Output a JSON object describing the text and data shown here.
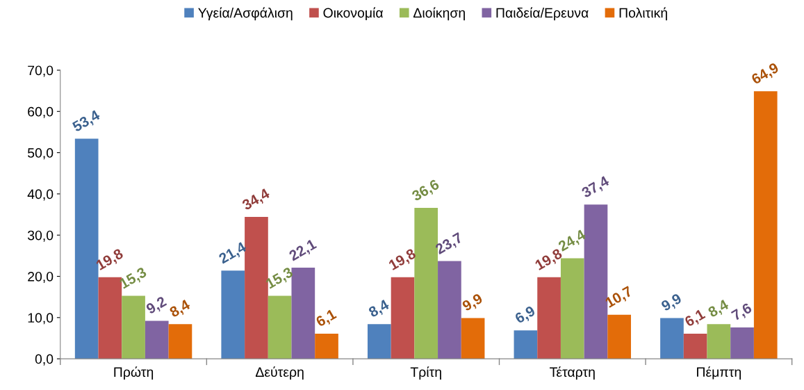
{
  "chart_data": {
    "type": "bar",
    "categories": [
      "Πρώτη",
      "Δεύτερη",
      "Τρίτη",
      "Τέταρτη",
      "Πέμπτη"
    ],
    "series": [
      {
        "name": "Υγεία/Ασφάλιση",
        "color": "#4f81bd",
        "values": [
          53.4,
          21.4,
          8.4,
          6.9,
          9.9
        ],
        "value_labels": [
          "53,4",
          "21,4",
          "8,4",
          "6,9",
          "9,9"
        ]
      },
      {
        "name": "Οικονομία",
        "color": "#c0504d",
        "values": [
          19.8,
          34.4,
          19.8,
          19.8,
          6.1
        ],
        "value_labels": [
          "19,8",
          "34,4",
          "19,8",
          "19,8",
          "6,1"
        ]
      },
      {
        "name": "Διοίκηση",
        "color": "#9bbb59",
        "values": [
          15.3,
          15.3,
          36.6,
          24.4,
          8.4
        ],
        "value_labels": [
          "15,3",
          "15,3",
          "36,6",
          "24,4",
          "8,4"
        ]
      },
      {
        "name": "Παιδεία/Ερευνα",
        "color": "#8064a2",
        "values": [
          9.2,
          22.1,
          23.7,
          37.4,
          7.6
        ],
        "value_labels": [
          "9,2",
          "22,1",
          "23,7",
          "37,4",
          "7,6"
        ]
      },
      {
        "name": "Πολιτική",
        "color": "#e36c09",
        "values": [
          8.4,
          6.1,
          9.9,
          10.7,
          64.9
        ],
        "value_labels": [
          "8,4",
          "6,1",
          "9,9",
          "10,7",
          "64,9"
        ]
      }
    ],
    "ylim": [
      0,
      70
    ],
    "yticks": [
      {
        "value": 0,
        "label": "0,0"
      },
      {
        "value": 10,
        "label": "10,0"
      },
      {
        "value": 20,
        "label": "20,0"
      },
      {
        "value": 30,
        "label": "30,0"
      },
      {
        "value": 40,
        "label": "40,0"
      },
      {
        "value": 50,
        "label": "50,0"
      },
      {
        "value": 60,
        "label": "60,0"
      },
      {
        "value": 70,
        "label": "70,0"
      }
    ],
    "grid": false,
    "legend": "top"
  }
}
